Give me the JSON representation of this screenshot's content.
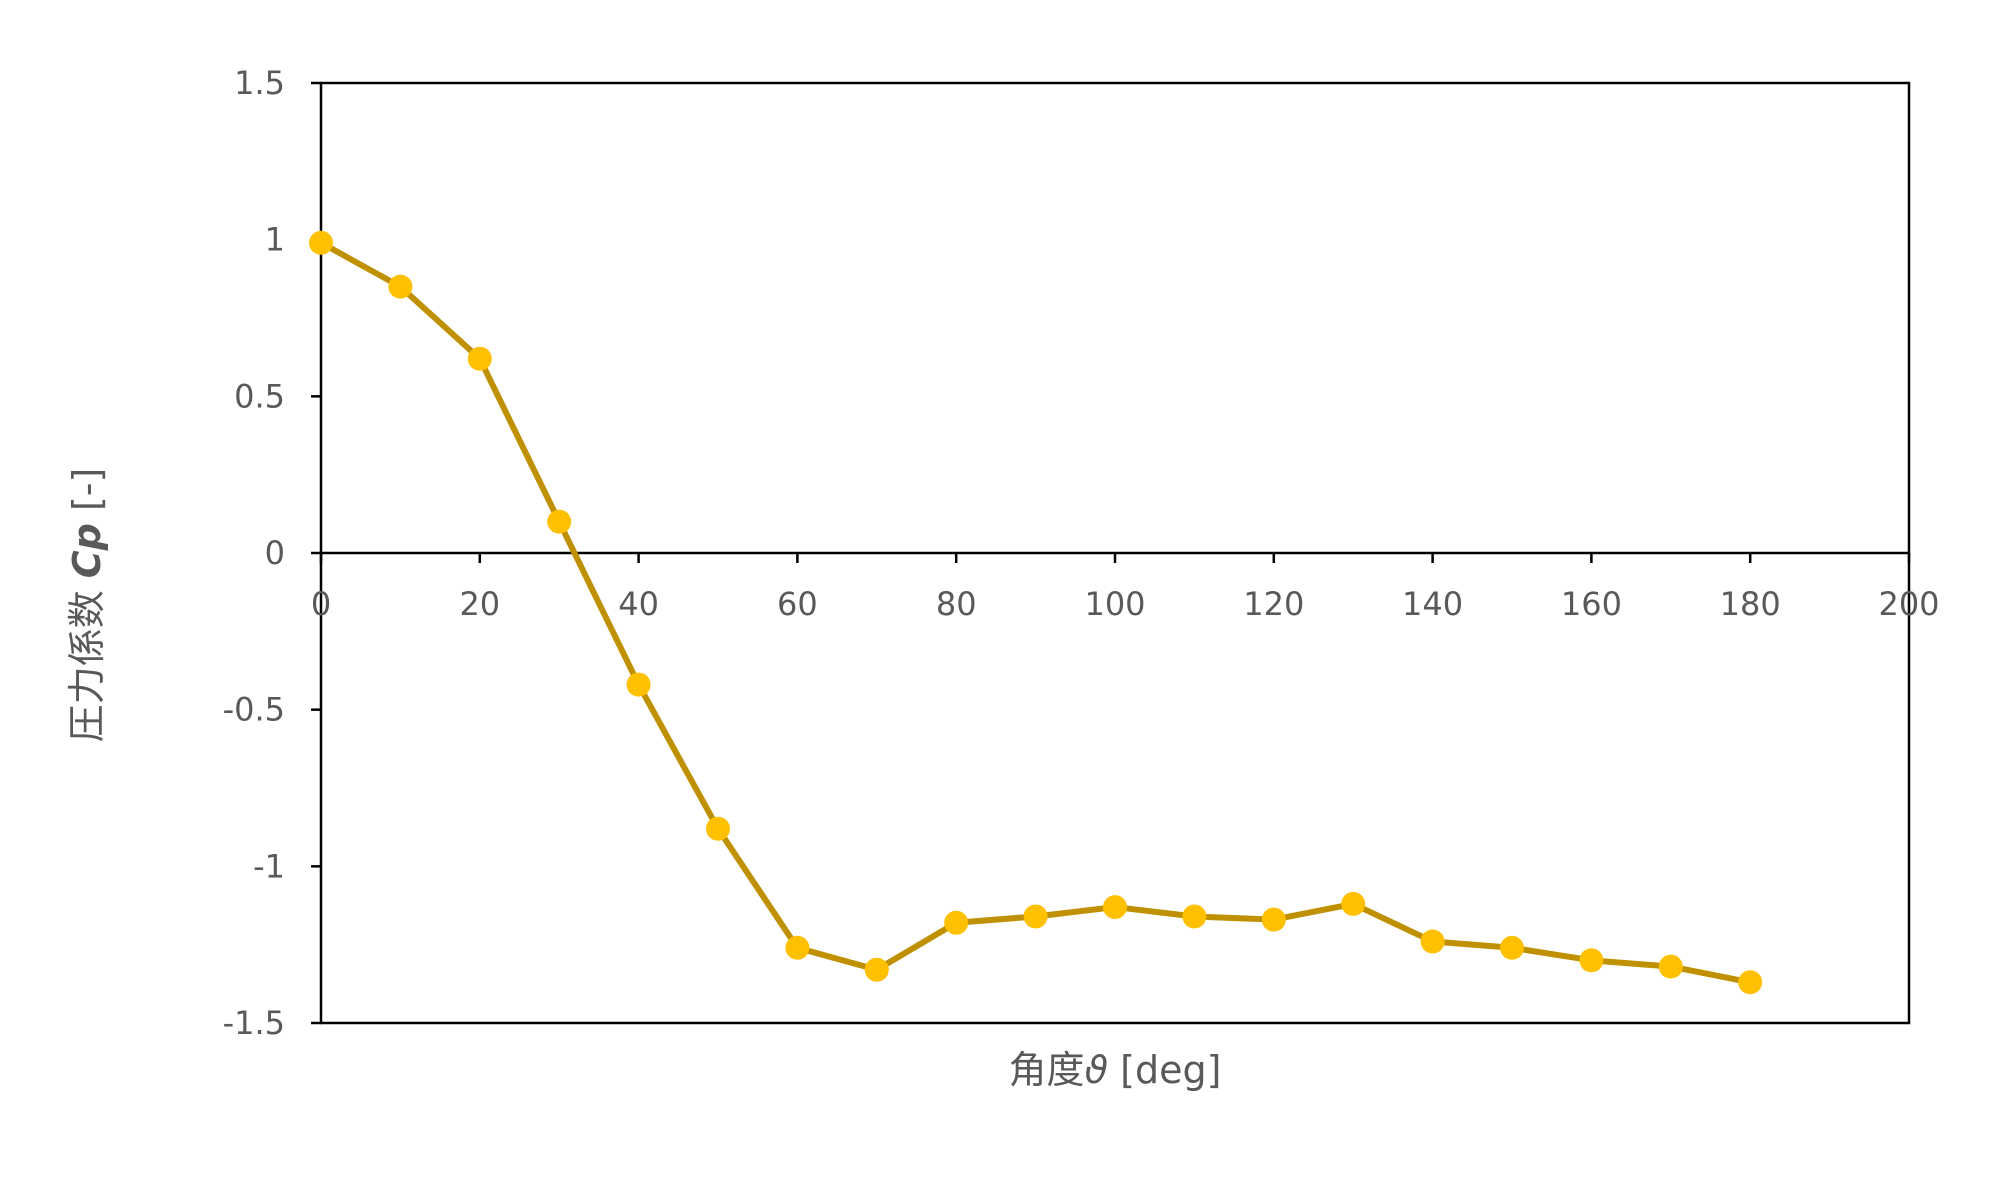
{
  "chart_data": {
    "type": "line",
    "xlabel_prefix": "角度",
    "xlabel_symbol": "ϑ",
    "xlabel_unit": " [deg]",
    "ylabel_prefix": "圧力係数 ",
    "ylabel_symbol": "Cp",
    "ylabel_unit": " [-]",
    "xlim": [
      0,
      200
    ],
    "ylim": [
      -1.5,
      1.5
    ],
    "x_ticks": [
      0,
      20,
      40,
      60,
      80,
      100,
      120,
      140,
      160,
      180,
      200
    ],
    "y_ticks": [
      1.5,
      1,
      0.5,
      0,
      -0.5,
      -1,
      -1.5
    ],
    "x_tick_labels": [
      "0",
      "20",
      "40",
      "60",
      "80",
      "100",
      "120",
      "140",
      "160",
      "180",
      "200"
    ],
    "y_tick_labels": [
      "1.5",
      "1",
      "0.5",
      "0",
      "-0.5",
      "-1",
      "-1.5"
    ],
    "grid": false,
    "line_color": "#bf9000",
    "marker_color": "#ffc000",
    "series": [
      {
        "x": [
          0,
          10,
          20,
          30,
          40,
          50,
          60,
          70,
          80,
          90,
          100,
          110,
          120,
          130,
          140,
          150,
          160,
          170,
          180
        ],
        "y": [
          0.99,
          0.85,
          0.62,
          0.1,
          -0.42,
          -0.88,
          -1.26,
          -1.33,
          -1.18,
          -1.16,
          -1.13,
          -1.16,
          -1.17,
          -1.12,
          -1.24,
          -1.26,
          -1.3,
          -1.32,
          -1.37
        ]
      }
    ]
  }
}
